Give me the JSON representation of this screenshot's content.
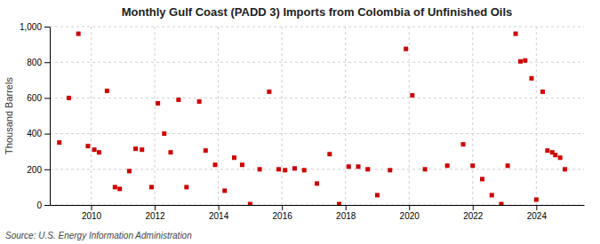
{
  "chart_data": {
    "type": "scatter",
    "title": "Monthly Gulf Coast (PADD 3) Imports from Colombia of Unfinished Oils",
    "ylabel": "Thousand Barrels",
    "annotations": [
      "Source: U.S. Energy Information Administration"
    ],
    "color": "#cc0000",
    "marker": "square",
    "grid": true,
    "xlim": [
      2008.7,
      2025.5
    ],
    "ylim": [
      0,
      1000
    ],
    "xticks": [
      2010,
      2012,
      2014,
      2016,
      2018,
      2020,
      2022,
      2024
    ],
    "yticks": [
      0,
      200,
      400,
      600,
      800,
      {
        "value": 1000,
        "label": "1,000"
      }
    ],
    "x": [
      2009.0,
      2009.3,
      2009.6,
      2009.9,
      2010.1,
      2010.25,
      2010.5,
      2010.75,
      2010.9,
      2011.2,
      2011.4,
      2011.6,
      2011.9,
      2012.1,
      2012.3,
      2012.5,
      2012.75,
      2013.0,
      2013.4,
      2013.6,
      2013.9,
      2014.2,
      2014.5,
      2014.75,
      2015.0,
      2015.3,
      2015.6,
      2015.9,
      2016.1,
      2016.4,
      2016.7,
      2017.1,
      2017.5,
      2017.8,
      2018.1,
      2018.4,
      2018.7,
      2019.0,
      2019.4,
      2019.9,
      2020.1,
      2020.5,
      2021.2,
      2021.7,
      2022.0,
      2022.3,
      2022.6,
      2022.9,
      2023.1,
      2023.35,
      2023.5,
      2023.65,
      2023.85,
      2024.0,
      2024.2,
      2024.35,
      2024.5,
      2024.6,
      2024.75,
      2024.9
    ],
    "values": [
      350,
      600,
      960,
      330,
      310,
      295,
      640,
      100,
      90,
      190,
      315,
      310,
      100,
      570,
      400,
      295,
      590,
      100,
      580,
      305,
      225,
      80,
      265,
      225,
      5,
      200,
      635,
      200,
      195,
      205,
      195,
      120,
      285,
      5,
      215,
      215,
      200,
      55,
      195,
      875,
      615,
      200,
      220,
      340,
      220,
      145,
      55,
      5,
      220,
      960,
      805,
      810,
      710,
      30,
      635,
      305,
      295,
      280,
      265,
      200
    ]
  }
}
